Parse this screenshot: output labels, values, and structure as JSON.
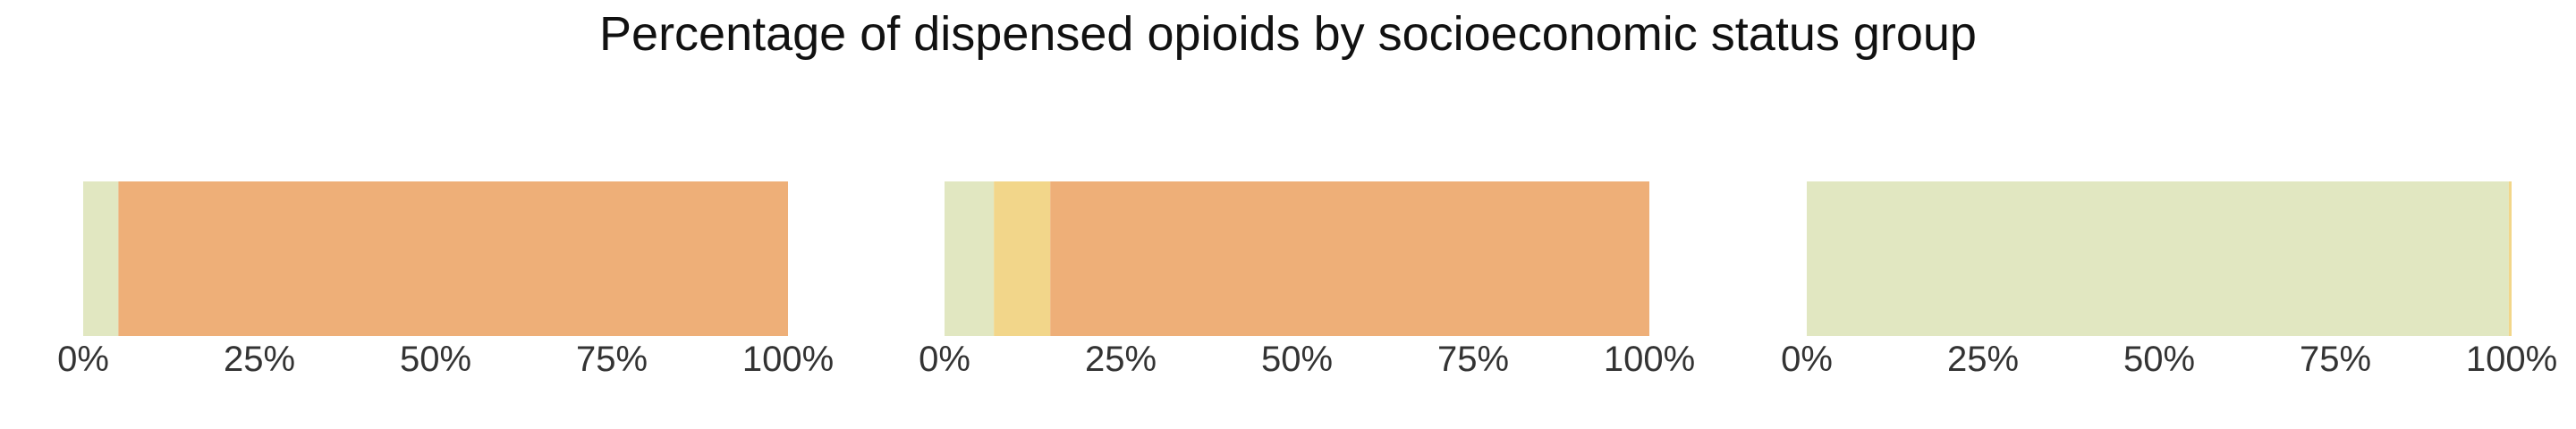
{
  "chart_data": {
    "type": "bar",
    "orientation": "horizontal",
    "stacked": true,
    "title": "Percentage of dispensed opioids by socioeconomic status group",
    "xlabel": "",
    "ylabel": "",
    "xlim": [
      0,
      100
    ],
    "x_ticks": [
      "0%",
      "25%",
      "50%",
      "75%",
      "100%"
    ],
    "grid": false,
    "legend": "none",
    "segment_colors": [
      "#e1e7c1",
      "#f2d68a",
      "#eeaf78"
    ],
    "panels": [
      {
        "segments": [
          {
            "value": 5,
            "color": "#e1e7c1"
          },
          {
            "value": 0,
            "color": "#f2d68a"
          },
          {
            "value": 95,
            "color": "#eeaf78"
          }
        ]
      },
      {
        "segments": [
          {
            "value": 7,
            "color": "#e1e7c1"
          },
          {
            "value": 8,
            "color": "#f2d68a"
          },
          {
            "value": 85,
            "color": "#eeaf78"
          }
        ]
      },
      {
        "segments": [
          {
            "value": 99.6,
            "color": "#e1e7c1"
          },
          {
            "value": 0.4,
            "color": "#f2d68a"
          },
          {
            "value": 0,
            "color": "#eeaf78"
          }
        ]
      }
    ]
  }
}
